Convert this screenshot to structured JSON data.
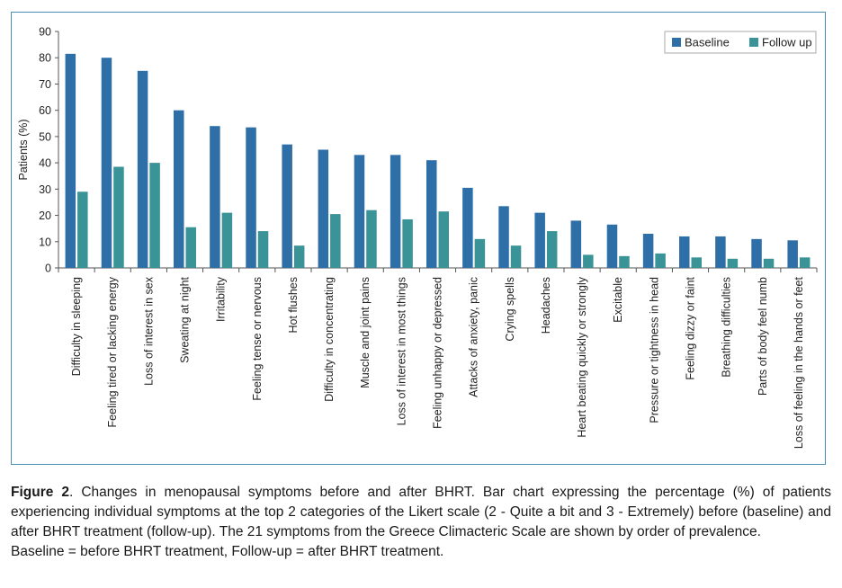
{
  "chart_data": {
    "type": "bar",
    "ylabel": "Patients (%)",
    "ylim": [
      0,
      90
    ],
    "yticks": [
      0,
      10,
      20,
      30,
      40,
      50,
      60,
      70,
      80,
      90
    ],
    "legend_position": "top-right",
    "categories": [
      "Difficulty in sleeping",
      "Feeling tired or lacking energy",
      "Loss of interest in sex",
      "Sweating at night",
      "Irritability",
      "Feeling tense or nervous",
      "Hot flushes",
      "Difficulty in concentrating",
      "Muscle and joint pains",
      "Loss of interest in most things",
      "Feeling unhappy or depressed",
      "Attacks of anxiety, panic",
      "Crying spells",
      "Headaches",
      "Heart beating quickly or strongly",
      "Excitable",
      "Pressure or tightness in head",
      "Feeling dizzy or faint",
      "Breathing difficulties",
      "Parts of body feel numb",
      "Loss of feeling in the hands or feet"
    ],
    "series": [
      {
        "name": "Baseline",
        "color": "#2f6fa8",
        "values": [
          81.5,
          80,
          75,
          60,
          54,
          53.5,
          47,
          45,
          43,
          43,
          41,
          30.5,
          23.5,
          21,
          18,
          16.5,
          13,
          12,
          12,
          11,
          10.5
        ]
      },
      {
        "name": "Follow up",
        "color": "#3a9396",
        "values": [
          29,
          38.5,
          40,
          15.5,
          21,
          14,
          8.5,
          20.5,
          22,
          18.5,
          21.5,
          11,
          8.5,
          14,
          5,
          4.5,
          5.5,
          4,
          3.5,
          3.5,
          4
        ]
      }
    ]
  },
  "caption": {
    "figure_label": "Figure 2",
    "text": ". Changes in menopausal symptoms before and after BHRT. Bar chart expressing the percentage (%) of patients experiencing individual symptoms at the top 2 categories of the Likert scale (2 - Quite a bit and 3 - Extremely) before (baseline) and after BHRT treatment (follow-up). The 21 symptoms from the Greece Climacteric Scale are shown by order of prevalence.",
    "note": "Baseline = before BHRT treatment, Follow-up = after BHRT treatment."
  }
}
